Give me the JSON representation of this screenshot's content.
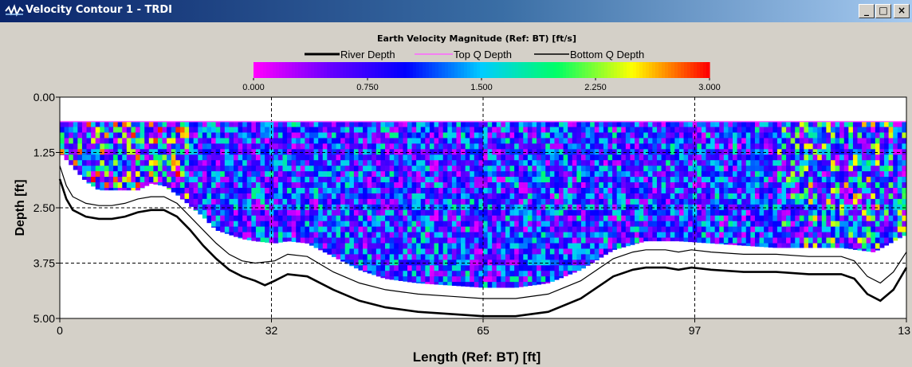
{
  "window": {
    "title": "Velocity Contour 1 - TRDI",
    "buttons": {
      "minimize": "_",
      "maximize": "□",
      "close": "×"
    },
    "icons": [
      "app-icon",
      "minimize-icon",
      "maximize-icon",
      "close-icon"
    ]
  },
  "chart_data": {
    "type": "heatmap",
    "title": "Earth Velocity Magnitude (Ref: BT) [ft/s]",
    "xlabel": "Length (Ref: BT) [ft]",
    "ylabel": "Depth [ft]",
    "x_ticks": [
      "0",
      "32",
      "65",
      "97",
      "13"
    ],
    "y_ticks": [
      "0.00",
      "1.25",
      "2.50",
      "3.75",
      "5.00"
    ],
    "xlim": [
      0,
      130
    ],
    "ylim": [
      0,
      5.0
    ],
    "grid": "dashed",
    "legend": [
      {
        "name": "River Depth",
        "color": "#000000"
      },
      {
        "name": "Top Q Depth",
        "color": "#ff66ff"
      },
      {
        "name": "Bottom Q Depth",
        "color": "#000000"
      }
    ],
    "colorbar": {
      "min": 0.0,
      "max": 3.0,
      "ticks": [
        "0.000",
        "0.750",
        "1.500",
        "2.250",
        "3.000"
      ],
      "colors": [
        "#ff00ff",
        "#6600ff",
        "#0000ff",
        "#00ccff",
        "#00ff66",
        "#ffff00",
        "#ff0000"
      ]
    },
    "top_q_depth_ft": 0.55,
    "river_depth_profile": {
      "x": [
        0,
        1,
        2,
        4,
        6,
        8,
        10,
        12,
        14,
        16,
        18,
        20,
        22,
        24,
        26,
        28,
        30,
        31.5,
        33,
        35,
        38,
        42,
        46,
        50,
        55,
        60,
        65,
        70,
        75,
        80,
        85,
        88,
        90,
        93,
        95,
        97,
        100,
        105,
        110,
        115,
        120,
        122,
        124,
        126,
        128,
        130
      ],
      "depth": [
        1.85,
        2.3,
        2.55,
        2.7,
        2.75,
        2.75,
        2.7,
        2.6,
        2.55,
        2.55,
        2.7,
        3.0,
        3.35,
        3.65,
        3.9,
        4.05,
        4.15,
        4.25,
        4.15,
        4.0,
        4.05,
        4.35,
        4.6,
        4.75,
        4.85,
        4.9,
        4.95,
        4.95,
        4.85,
        4.55,
        4.05,
        3.9,
        3.85,
        3.85,
        3.9,
        3.85,
        3.9,
        3.95,
        3.95,
        4.0,
        4.0,
        4.1,
        4.45,
        4.6,
        4.35,
        3.85
      ]
    },
    "bottom_q_depth_profile": {
      "x": [
        0,
        1,
        2,
        4,
        6,
        8,
        10,
        12,
        14,
        16,
        18,
        20,
        22,
        24,
        26,
        28,
        30,
        33,
        35,
        38,
        42,
        46,
        50,
        55,
        60,
        65,
        70,
        75,
        80,
        85,
        88,
        90,
        93,
        95,
        97,
        100,
        105,
        110,
        115,
        120,
        122,
        124,
        126,
        128,
        130
      ],
      "depth": [
        1.55,
        2.0,
        2.25,
        2.4,
        2.45,
        2.45,
        2.4,
        2.3,
        2.25,
        2.25,
        2.4,
        2.7,
        3.0,
        3.3,
        3.55,
        3.7,
        3.75,
        3.7,
        3.55,
        3.6,
        3.95,
        4.2,
        4.35,
        4.45,
        4.5,
        4.55,
        4.55,
        4.45,
        4.15,
        3.65,
        3.5,
        3.45,
        3.45,
        3.5,
        3.45,
        3.5,
        3.55,
        3.55,
        3.6,
        3.6,
        3.7,
        4.05,
        4.2,
        3.95,
        3.5
      ]
    },
    "data_bottom_profile": {
      "x": [
        0,
        4,
        6,
        8,
        10,
        12,
        14,
        16,
        18,
        20,
        22,
        24,
        26,
        28,
        30,
        33,
        35,
        38,
        42,
        46,
        50,
        55,
        60,
        65,
        70,
        75,
        80,
        85,
        90,
        95,
        100,
        105,
        110,
        115,
        120,
        125,
        130
      ],
      "depth": [
        1.25,
        1.9,
        2.1,
        2.1,
        2.1,
        2.1,
        1.95,
        2.0,
        2.2,
        2.45,
        2.7,
        3.0,
        3.1,
        3.2,
        3.25,
        3.3,
        3.25,
        3.3,
        3.6,
        3.9,
        4.1,
        4.2,
        4.25,
        4.3,
        4.3,
        4.2,
        3.9,
        3.45,
        3.25,
        3.25,
        3.3,
        3.35,
        3.4,
        3.4,
        3.4,
        3.5,
        3.1
      ]
    }
  }
}
